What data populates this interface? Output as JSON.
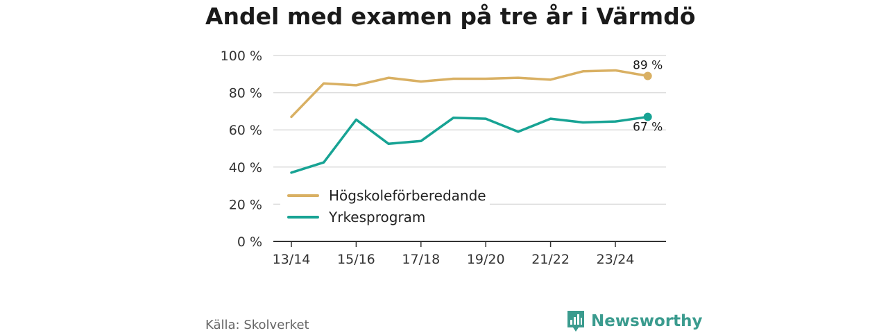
{
  "chart_data": {
    "type": "line",
    "title": "Andel med examen på tre år i Värmdö",
    "xlabel": "",
    "ylabel": "",
    "x": [
      "13/14",
      "14/15",
      "15/16",
      "16/17",
      "17/18",
      "18/19",
      "19/20",
      "20/21",
      "21/22",
      "22/23",
      "23/24",
      "24/25"
    ],
    "x_tick_labels": [
      "13/14",
      "15/16",
      "17/18",
      "19/20",
      "21/22",
      "23/24"
    ],
    "ylim": [
      0,
      100
    ],
    "yticks": [
      0,
      20,
      40,
      60,
      80,
      100
    ],
    "ytick_labels": [
      "0 %",
      "20 %",
      "40 %",
      "60 %",
      "80 %",
      "100 %"
    ],
    "grid": true,
    "legend_position": "bottom-left inside plot",
    "series": [
      {
        "name": "Högskoleförberedande",
        "color": "#d9b063",
        "values": [
          67,
          85,
          84,
          88,
          86,
          87.5,
          87.5,
          88,
          87,
          91.5,
          92,
          89
        ],
        "end_label": "89 %"
      },
      {
        "name": "Yrkesprogram",
        "color": "#17a394",
        "values": [
          37,
          42.5,
          65.5,
          52.5,
          54,
          66.5,
          66,
          59,
          66,
          64,
          64.5,
          67
        ],
        "end_label": "67 %"
      }
    ]
  },
  "source": "Källa: Skolverket",
  "brand": {
    "name": "Newsworthy",
    "color": "#3a9b8e",
    "icon": "newsworthy-logo-icon"
  }
}
